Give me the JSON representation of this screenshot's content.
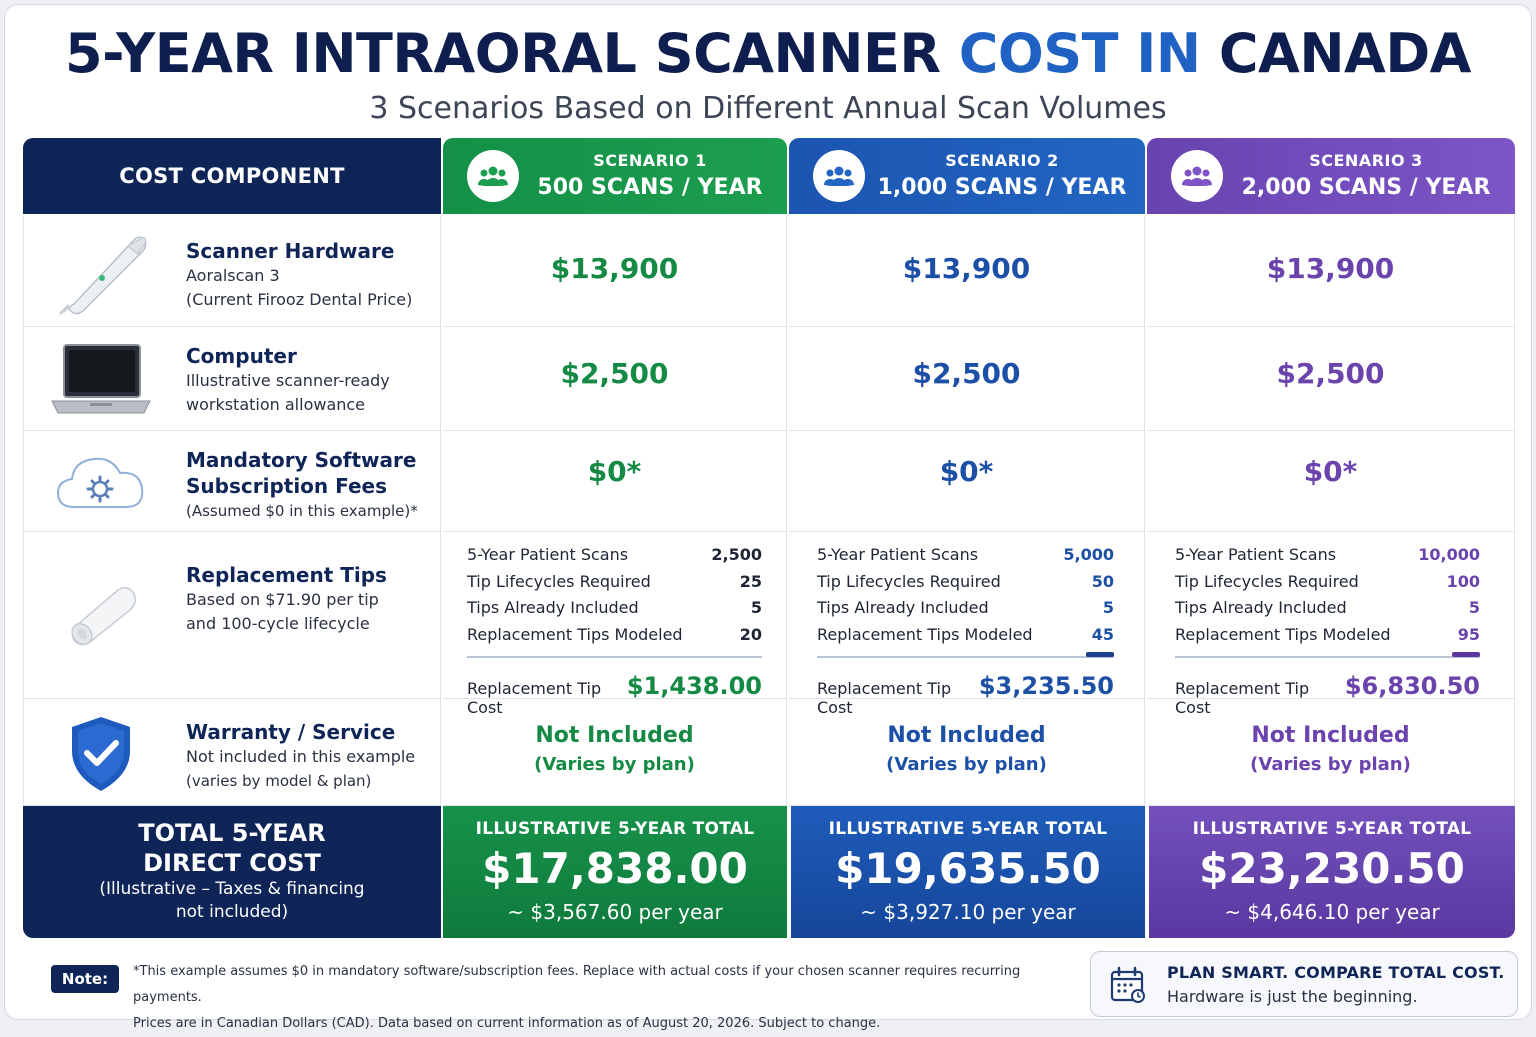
{
  "header": {
    "title_main": "5-YEAR INTRAORAL SCANNER",
    "title_highlight": "COST IN",
    "title_end": "CANADA",
    "subtitle": "3 Scenarios Based on Different Annual Scan Volumes"
  },
  "table": {
    "component_header": "COST COMPONENT",
    "scenarios": [
      {
        "label": "SCENARIO 1",
        "volume": "500 SCANS / YEAR",
        "color": "#1c9e4f",
        "icon": "users-icon"
      },
      {
        "label": "SCENARIO 2",
        "volume": "1,000 SCANS / YEAR",
        "color": "#2365c3",
        "icon": "users-icon"
      },
      {
        "label": "SCENARIO 3",
        "volume": "2,000 SCANS / YEAR",
        "color": "#7d55c6",
        "icon": "users-icon"
      }
    ],
    "hardware": {
      "title": "Scanner Hardware",
      "sub1": "Aoralscan 3",
      "sub2": "(Current Firooz Dental Price)",
      "icon": "scanner-wand-icon",
      "values": [
        "$13,900",
        "$13,900",
        "$13,900"
      ]
    },
    "computer": {
      "title": "Computer",
      "sub1": "Illustrative scanner-ready",
      "sub2": "workstation allowance",
      "icon": "laptop-icon",
      "values": [
        "$2,500",
        "$2,500",
        "$2,500"
      ]
    },
    "software": {
      "title1": "Mandatory Software",
      "title2": "Subscription Fees",
      "sub1": "(Assumed $0 in this example)*",
      "icon": "cloud-gear-icon",
      "values": [
        "$0*",
        "$0*",
        "$0*"
      ]
    },
    "tips": {
      "title": "Replacement Tips",
      "sub1": "Based on $71.90 per tip",
      "sub2": "and 100-cycle lifecycle",
      "icon": "scanner-tip-icon",
      "row_labels": [
        "5-Year Patient Scans",
        "Tip Lifecycles Required",
        "Tips Already Included",
        "Replacement Tips Modeled"
      ],
      "cost_label": "Replacement Tip Cost",
      "scenarios": [
        {
          "values": [
            "2,500",
            "25",
            "5",
            "20"
          ],
          "cost": "$1,438.00"
        },
        {
          "values": [
            "5,000",
            "50",
            "5",
            "45"
          ],
          "cost": "$3,235.50"
        },
        {
          "values": [
            "10,000",
            "100",
            "5",
            "95"
          ],
          "cost": "$6,830.50"
        }
      ]
    },
    "warranty": {
      "title": "Warranty / Service",
      "sub1": "Not included in this example",
      "sub2": "(varies by model & plan)",
      "icon": "shield-check-icon",
      "value_main": "Not Included",
      "value_sub": "(Varies by plan)"
    },
    "total": {
      "title1": "TOTAL 5-YEAR",
      "title2": "DIRECT COST",
      "sub1": "(Illustrative – Taxes & financing",
      "sub2": "not included)",
      "scenario_label": "ILLUSTRATIVE 5-YEAR TOTAL",
      "scenarios": [
        {
          "total": "$17,838.00",
          "per_year": "~ $3,567.60 per year"
        },
        {
          "total": "$19,635.50",
          "per_year": "~ $3,927.10 per year"
        },
        {
          "total": "$23,230.50",
          "per_year": "~ $4,646.10 per year"
        }
      ]
    }
  },
  "footer": {
    "note_label": "Note:",
    "note_line1": "*This example assumes $0 in mandatory software/subscription fees. Replace with actual costs if your chosen scanner requires recurring payments.",
    "note_line2": "Prices are in Canadian Dollars (CAD). Data based on current information as of August 20, 2026. Subject to change.",
    "cta_title": "PLAN SMART. COMPARE TOTAL COST.",
    "cta_sub": "Hardware is just the beginning.",
    "cta_icon": "calendar-icon"
  }
}
